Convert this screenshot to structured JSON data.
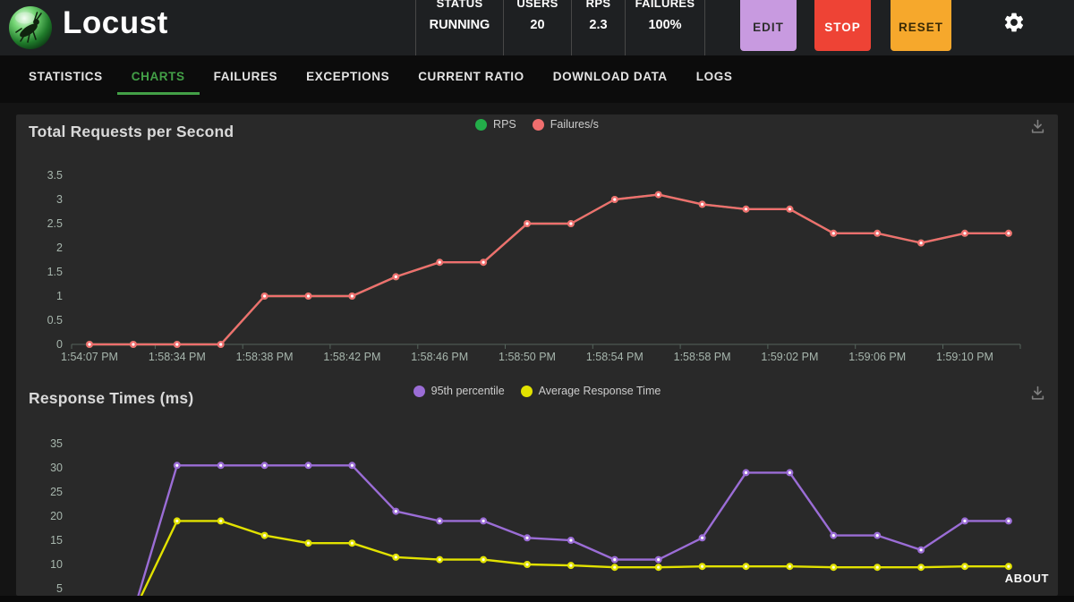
{
  "header": {
    "app_name": "Locust",
    "stats": [
      {
        "label": "STATUS",
        "value": "RUNNING"
      },
      {
        "label": "USERS",
        "value": "20"
      },
      {
        "label": "RPS",
        "value": "2.3"
      },
      {
        "label": "FAILURES",
        "value": "100%"
      }
    ],
    "buttons": [
      {
        "label": "EDIT",
        "color": "#c89ae0",
        "text_color": "#2e2e2e"
      },
      {
        "label": "STOP",
        "color": "#ee4335",
        "text_color": "#ffffff"
      },
      {
        "label": "RESET",
        "color": "#f6a82c",
        "text_color": "#3a2a06"
      }
    ]
  },
  "nav": {
    "tabs": [
      {
        "label": "STATISTICS"
      },
      {
        "label": "CHARTS"
      },
      {
        "label": "FAILURES"
      },
      {
        "label": "EXCEPTIONS"
      },
      {
        "label": "CURRENT RATIO"
      },
      {
        "label": "DOWNLOAD DATA"
      },
      {
        "label": "LOGS"
      }
    ],
    "active": "CHARTS",
    "active_color": "#43a047"
  },
  "footer": {
    "about_label": "ABOUT"
  },
  "chart_data": [
    {
      "type": "line",
      "title": "Total Requests per Second",
      "x_tick_labels": [
        "1:54:07 PM",
        "1:58:34 PM",
        "1:58:38 PM",
        "1:58:42 PM",
        "1:58:46 PM",
        "1:58:50 PM",
        "1:58:54 PM",
        "1:58:58 PM",
        "1:59:02 PM",
        "1:59:06 PM",
        "1:59:10 PM"
      ],
      "x_points_per_tick": 2,
      "ylim": [
        0,
        3.5
      ],
      "yticks": [
        0,
        0.5,
        1,
        1.5,
        2,
        2.5,
        3,
        3.5
      ],
      "grid": false,
      "legend_position": "top-center",
      "series": [
        {
          "name": "RPS",
          "color": "#23ad49",
          "values": [
            0,
            0,
            0,
            0,
            1,
            1,
            1,
            1.4,
            1.7,
            1.7,
            2.5,
            2.5,
            3,
            3.1,
            2.9,
            2.8,
            2.8,
            2.3,
            2.3,
            2.1,
            2.3,
            2.3
          ]
        },
        {
          "name": "Failures/s",
          "color": "#ef6e6e",
          "values": [
            0,
            0,
            0,
            0,
            1,
            1,
            1,
            1.4,
            1.7,
            1.7,
            2.5,
            2.5,
            3,
            3.1,
            2.9,
            2.8,
            2.8,
            2.3,
            2.3,
            2.1,
            2.3,
            2.3
          ]
        }
      ]
    },
    {
      "type": "line",
      "title": "Response Times (ms)",
      "x_tick_labels": [],
      "x_points_per_tick": 2,
      "ylim": [
        0,
        35
      ],
      "yticks": [
        5,
        10,
        15,
        20,
        25,
        30,
        35
      ],
      "grid": false,
      "legend_position": "top-center",
      "series": [
        {
          "name": "95th percentile",
          "color": "#9b6dd6",
          "values": [
            0,
            0,
            30.5,
            30.5,
            30.5,
            30.5,
            30.5,
            21,
            19,
            19,
            15.5,
            15,
            11,
            11,
            15.5,
            29,
            29,
            16,
            16,
            13,
            19,
            19
          ]
        },
        {
          "name": "Average Response Time",
          "color": "#e2e200",
          "values": [
            0,
            0,
            19,
            19,
            16,
            14.4,
            14.4,
            11.5,
            11,
            11,
            10,
            9.8,
            9.4,
            9.4,
            9.6,
            9.6,
            9.6,
            9.4,
            9.4,
            9.4,
            9.6,
            9.6
          ]
        }
      ]
    }
  ]
}
